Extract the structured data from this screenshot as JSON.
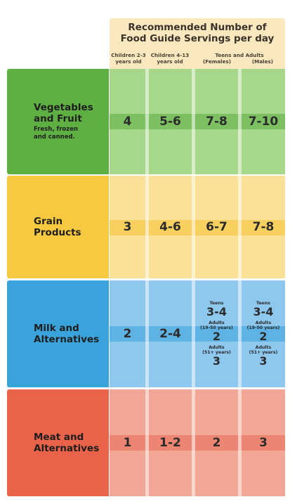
{
  "header": {
    "title_line1": "Recommended Number of",
    "title_line2": "Food Guide Servings per day",
    "col_children_2_3": [
      "Children 2-3",
      "years old"
    ],
    "col_children_4_13": [
      "Children 4-13",
      "years old"
    ],
    "teens_adults": "Teens and Adults",
    "females": "(Females)",
    "males": "(Males)"
  },
  "colors": {
    "vegetables": "#5fb043",
    "vegetables_cells": "#a6d78a",
    "vegetables_band": "#7cc062",
    "grain": "#f6c940",
    "grain_cells": "#fbe197",
    "grain_band": "#f7d060",
    "milk": "#3aa3dc",
    "milk_cells": "#8ec8ee",
    "milk_band": "#5fb2e4",
    "meat": "#e8634a",
    "meat_cells": "#f2a696",
    "meat_band": "#ec8571",
    "header": "#fbe8bf"
  },
  "rows": [
    {
      "name_line1": "Vegetables",
      "name_line2": "and Fruit",
      "sub_line1": "Fresh, frozen",
      "sub_line2": "and canned.",
      "values": [
        "4",
        "5-6",
        "7-8",
        "7-10"
      ]
    },
    {
      "name_line1": "Grain",
      "name_line2": "Products",
      "values": [
        "3",
        "4-6",
        "6-7",
        "7-8"
      ]
    },
    {
      "name_line1": "Milk and",
      "name_line2": "Alternatives",
      "values": [
        "2",
        "2-4"
      ],
      "female": {
        "teens_label": "Teens",
        "teens_value": "3-4",
        "adults_label": "Adults",
        "adults_range": "(19-50 years)",
        "adults_value": "2",
        "seniors_label": "Adults",
        "seniors_range": "(51+ years)",
        "seniors_value": "3"
      },
      "male": {
        "teens_label": "Teens",
        "teens_value": "3-4",
        "adults_label": "Adults",
        "adults_range": "(19-50 years)",
        "adults_value": "2",
        "seniors_label": "Adults",
        "seniors_range": "(51+ years)",
        "seniors_value": "3"
      }
    },
    {
      "name_line1": "Meat and",
      "name_line2": "Alternatives",
      "values": [
        "1",
        "1-2",
        "2",
        "3"
      ]
    }
  ]
}
